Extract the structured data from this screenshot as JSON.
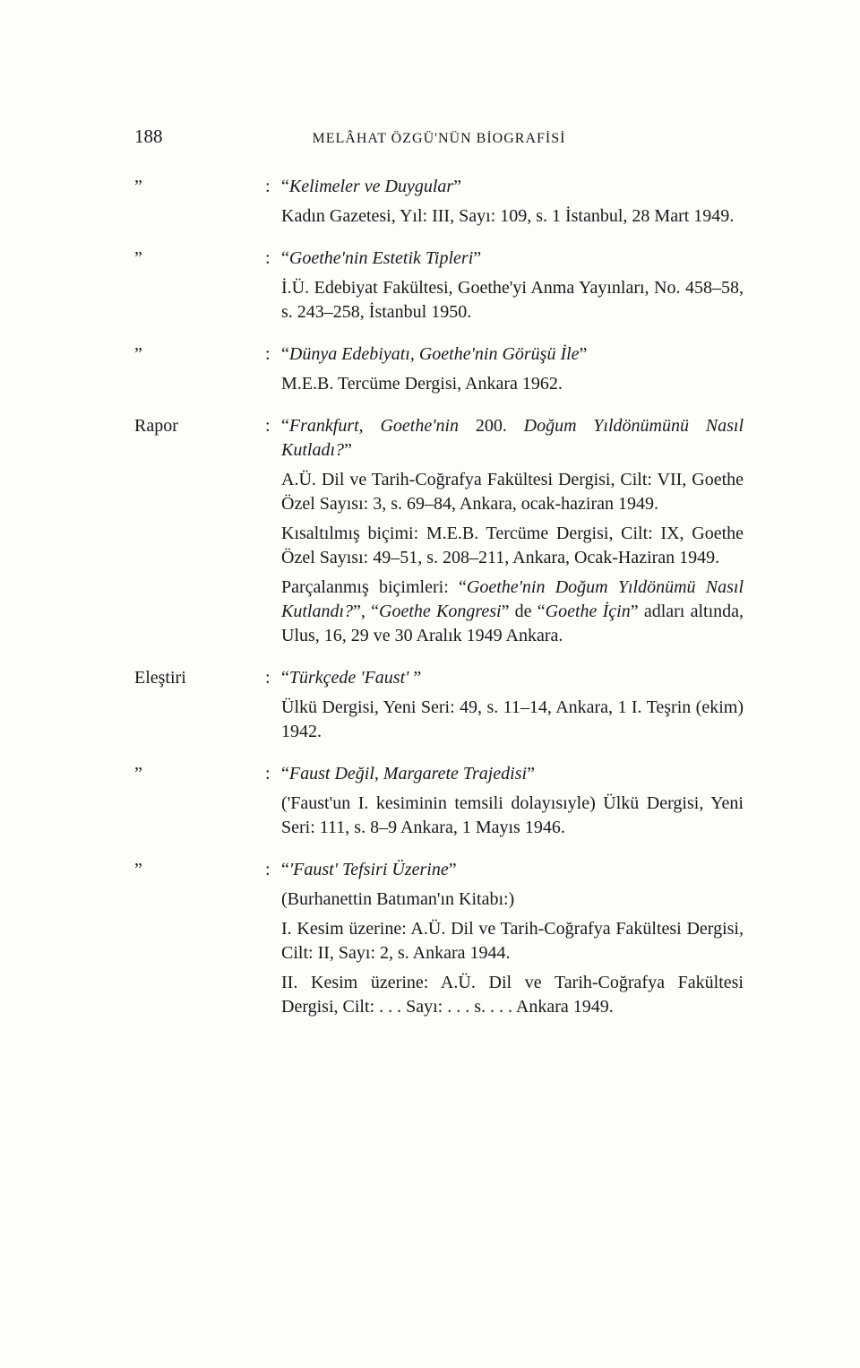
{
  "page_number": "188",
  "running_head": "MELÂHAT ÖZGÜ'NÜN BİOGRAFİSİ",
  "entries": [
    {
      "label": "”",
      "title_html": "“<i>Kelimeler ve Duygular</i>”",
      "detail_html": "Kadın Gazetesi, Yıl: III, Sayı: 109, s. 1 İstanbul, 28 Mart 1949."
    },
    {
      "label": "”",
      "title_html": "“<i>Goethe'nin Estetik Tipleri</i>”",
      "detail_html": "İ.Ü. Edebiyat Fakültesi, Goethe'yi Anma Yayınları, No. 458–58, s. 243–258, İstanbul 1950."
    },
    {
      "label": "”",
      "title_html": "“<i>Dünya Edebiyatı, Goethe'nin Görüşü İle</i>”",
      "detail_html": "M.E.B. Tercüme Dergisi, Ankara 1962."
    },
    {
      "label": "Rapor",
      "title_html": "“<i>Frankfurt, Goethe'nin</i> 200. <i>Doğum Yıldönümünü Nasıl Kutladı?</i>”",
      "detail_html": "A.Ü. Dil ve Tarih-Coğrafya Fakültesi Dergisi, Cilt: VII, Goethe Özel Sayısı: 3, s. 69–84, Ankara, ocak-haziran 1949.",
      "extra_html": [
        "Kısaltılmış biçimi: M.E.B. Tercüme Dergisi, Cilt: IX, Goethe Özel Sayısı: 49–51, s. 208–211, Ankara, Ocak-Haziran 1949.",
        "Parçalanmış biçimleri: “<i>Goethe'nin Doğum Yıldönümü Nasıl Kutlandı?</i>”, “<i>Goethe Kongresi</i>” de “<i>Goethe İçin</i>” adları altında, Ulus, 16, 29 ve 30 Aralık 1949 Ankara."
      ]
    },
    {
      "label": "Eleştiri",
      "title_html": "“<i>Türkçede 'Faust'</i> ”",
      "detail_html": "Ülkü Dergisi, Yeni Seri: 49, s. 11–14, Ankara, 1 I. Teşrin (ekim) 1942."
    },
    {
      "label": "”",
      "title_html": "“<i>Faust Değil, Margarete Trajedisi</i>”",
      "detail_html": "('Faust'un I. kesiminin temsili dolayısıyle) Ülkü Dergisi, Yeni Seri: 111, s. 8–9 Ankara, 1 Mayıs 1946."
    },
    {
      "label": "”",
      "title_html": "“<i>'Faust' Tefsiri Üzerine</i>”",
      "detail_html": "(Burhanettin Batıman'ın Kitabı:)",
      "extra_html": [
        "I. Kesim üzerine: A.Ü. Dil ve Tarih-Coğrafya Fakültesi Dergisi, Cilt: II, Sayı: 2, s. Ankara 1944.",
        "II. Kesim üzerine: A.Ü. Dil ve Tarih-Coğrafya Fakültesi Dergisi, Cilt: . . . Sayı: . . . s. . . . Ankara 1949."
      ]
    }
  ]
}
